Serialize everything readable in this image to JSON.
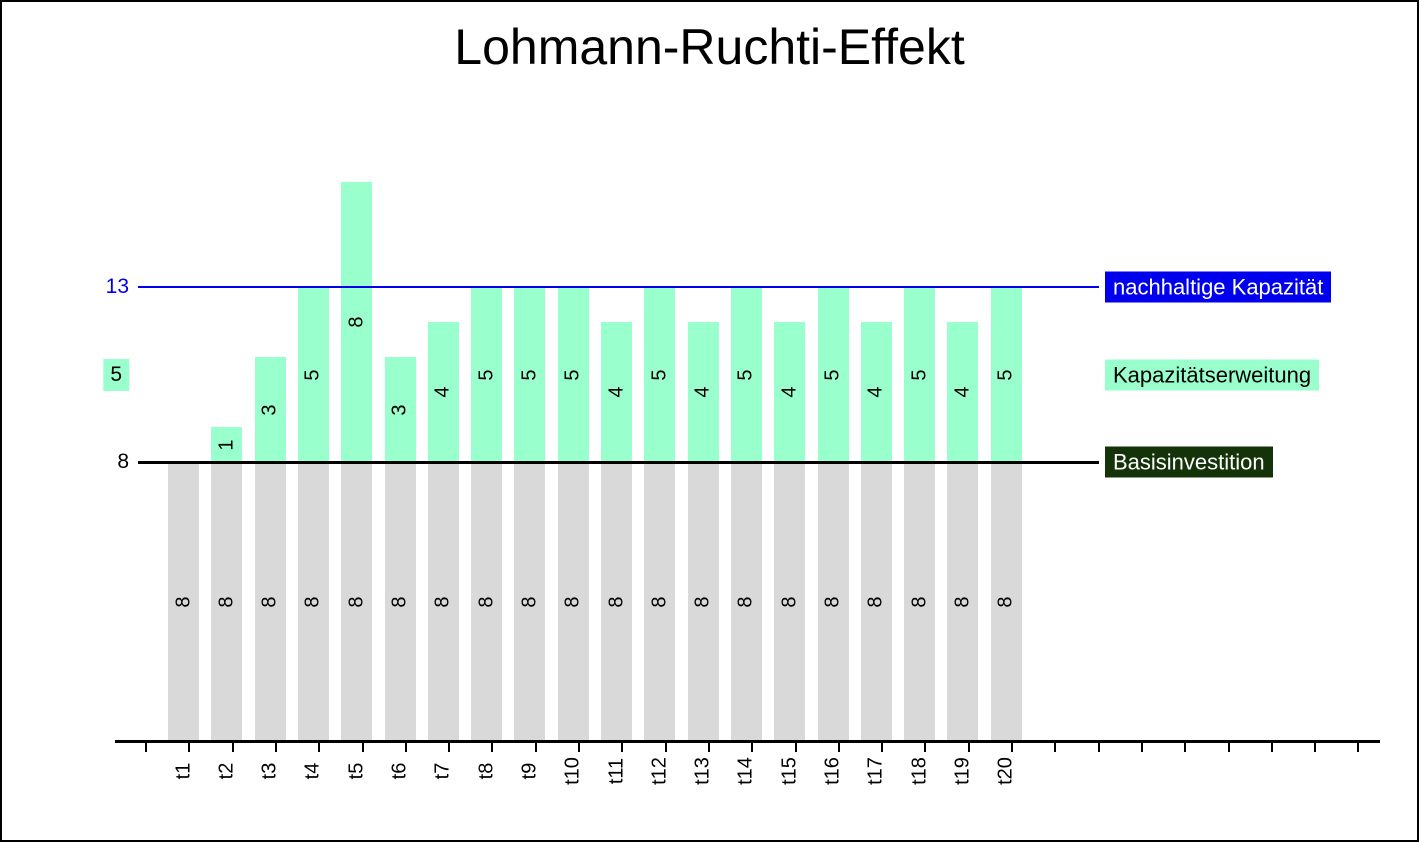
{
  "chart_data": {
    "type": "bar",
    "stacked": true,
    "grid": false,
    "legend_position": "right",
    "title": "Lohmann-Ruchti-Effekt",
    "categories": [
      "t1",
      "t2",
      "t3",
      "t4",
      "t5",
      "t6",
      "t7",
      "t8",
      "t9",
      "t10",
      "t11",
      "t12",
      "t13",
      "t14",
      "t15",
      "t16",
      "t17",
      "t18",
      "t19",
      "t20"
    ],
    "series": [
      {
        "name": "Basisinvestition",
        "color": "#d9d9d9",
        "label_color": "#000000",
        "values": [
          8,
          8,
          8,
          8,
          8,
          8,
          8,
          8,
          8,
          8,
          8,
          8,
          8,
          8,
          8,
          8,
          8,
          8,
          8,
          8
        ]
      },
      {
        "name": "Kapazitätserweitung",
        "color": "#99ffcc",
        "label_color": "#000000",
        "values": [
          0,
          1,
          3,
          5,
          8,
          3,
          4,
          5,
          5,
          5,
          4,
          5,
          4,
          5,
          4,
          5,
          4,
          5,
          4,
          5
        ]
      }
    ],
    "reference_lines": [
      {
        "label": "nachhaltige Kapazität",
        "value": 13,
        "color": "#0000ee",
        "thickness": 2
      },
      {
        "label": "Basisinvestition",
        "value": 8,
        "color": "#000000",
        "thickness": 3
      }
    ],
    "legend": [
      {
        "label": "nachhaltige Kapazität",
        "bg": "#0000ee",
        "fg": "#ffffff",
        "value": 13
      },
      {
        "label": "Kapazitätserweitung",
        "bg": "#99ffcc",
        "fg": "#000000",
        "value": 10.5
      },
      {
        "label": "Basisinvestition",
        "bg": "#143308",
        "fg": "#ffffff",
        "value": 8
      }
    ],
    "y_axis": {
      "labels": [
        {
          "text": "13",
          "value": 13,
          "color": "#0000ee",
          "boxed": false
        },
        {
          "text": "5",
          "value": 10.5,
          "color": "#000000",
          "boxed": true,
          "box_color": "#99ffcc"
        },
        {
          "text": "8",
          "value": 8,
          "color": "#000000",
          "boxed": false
        }
      ]
    },
    "x_axis": {
      "extra_unlabeled_ticks": 8
    },
    "ylim": [
      0,
      16.5
    ]
  }
}
